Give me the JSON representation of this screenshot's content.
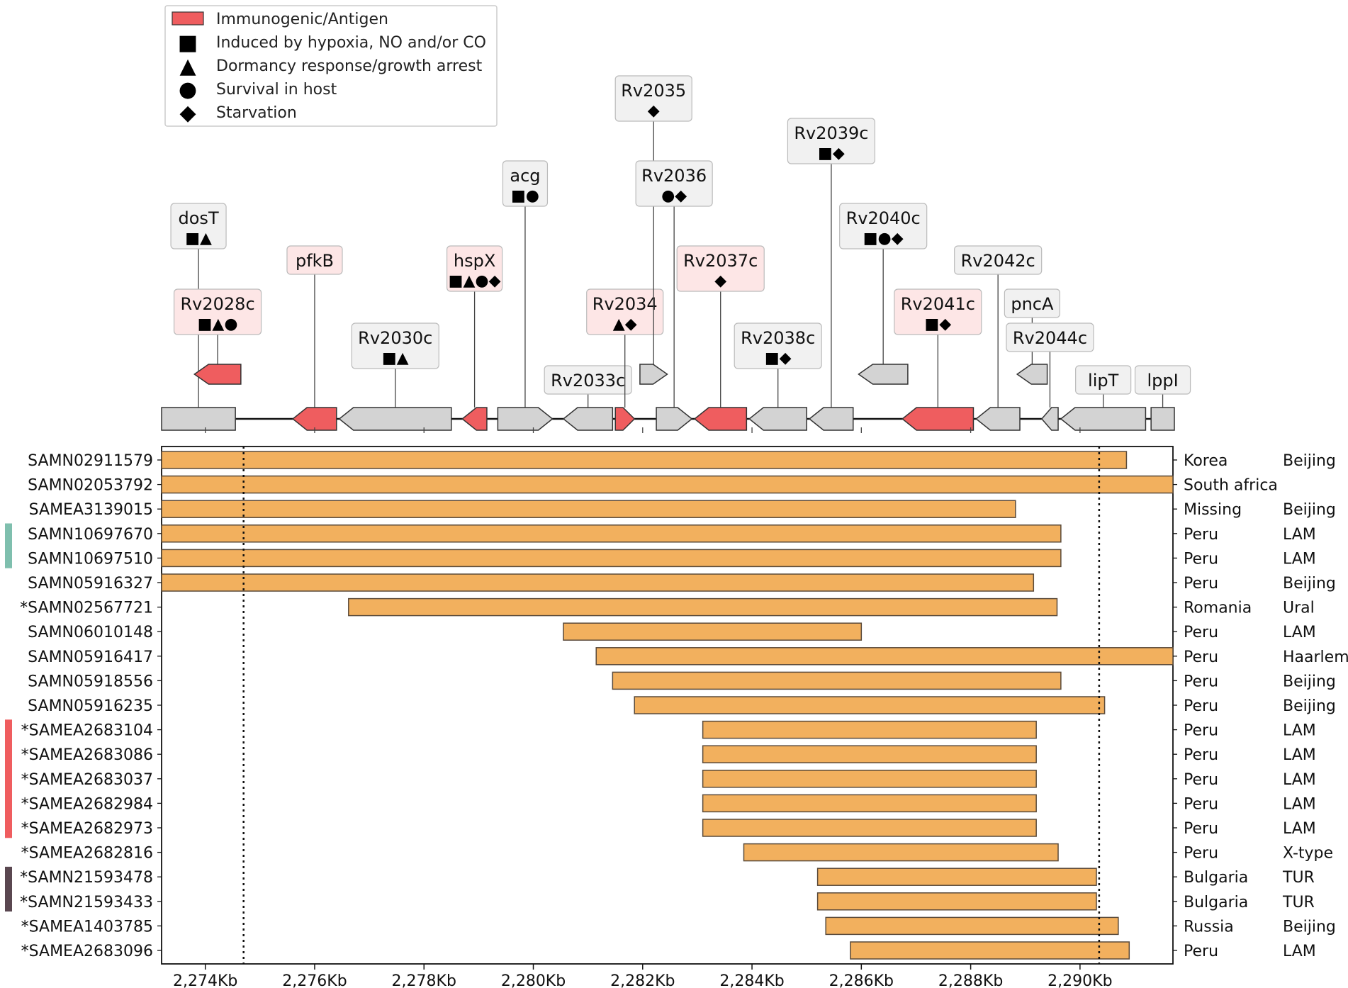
{
  "chart_data": {
    "type": "bar",
    "subtype": "genomic-deletion-map",
    "xlabel": "",
    "xlim": [
      2273200,
      2291700
    ],
    "x_ticks": [
      2274000,
      2276000,
      2278000,
      2280000,
      2282000,
      2284000,
      2286000,
      2288000,
      2290000
    ],
    "x_tick_labels": [
      "2,274Kb",
      "2,276Kb",
      "2,278Kb",
      "2,280Kb",
      "2,282Kb",
      "2,284Kb",
      "2,286Kb",
      "2,288Kb",
      "2,290Kb"
    ],
    "reference_lines": [
      2274700,
      2290350
    ],
    "bar_color": "#f2b05e",
    "antigen_color": "#ef5d5f",
    "gene_color": "#d3d3d3",
    "legend": [
      {
        "symbol": "antigen-box",
        "label": "Immunogenic/Antigen"
      },
      {
        "symbol": "■",
        "label": "Induced by hypoxia, NO and/or CO"
      },
      {
        "symbol": "▲",
        "label": "Dormancy response/growth arrest"
      },
      {
        "symbol": "●",
        "label": "Survival in host"
      },
      {
        "symbol": "◆",
        "label": "Starvation"
      }
    ],
    "genes": [
      {
        "name": "dosT",
        "start": 2273200,
        "end": 2274550,
        "strand": "+",
        "antigen": false,
        "row": "main",
        "symbols": "■▲",
        "label_level": 5
      },
      {
        "name": "Rv2028c",
        "start": 2273800,
        "end": 2274650,
        "strand": "-",
        "antigen": true,
        "row": "upper",
        "symbols": "■▲●",
        "label_level": 3
      },
      {
        "name": "pfkB",
        "start": 2275600,
        "end": 2276400,
        "strand": "-",
        "antigen": true,
        "row": "main",
        "symbols": "",
        "label_level": 4
      },
      {
        "name": "Rv2030c",
        "start": 2276450,
        "end": 2278500,
        "strand": "-",
        "antigen": false,
        "row": "main",
        "symbols": "■▲",
        "label_level": 2
      },
      {
        "name": "hspX",
        "start": 2278700,
        "end": 2279150,
        "strand": "-",
        "antigen": true,
        "row": "main",
        "symbols": "■▲●◆",
        "label_level": 4
      },
      {
        "name": "acg",
        "start": 2279350,
        "end": 2280350,
        "strand": "+",
        "antigen": false,
        "row": "main",
        "symbols": "■●",
        "label_level": 6
      },
      {
        "name": "Rv2033c",
        "start": 2280550,
        "end": 2281450,
        "strand": "-",
        "antigen": false,
        "row": "main",
        "symbols": "",
        "label_level": 1
      },
      {
        "name": "Rv2034",
        "start": 2281500,
        "end": 2281850,
        "strand": "+",
        "antigen": true,
        "row": "main",
        "symbols": "▲◆",
        "label_level": 3
      },
      {
        "name": "Rv2035",
        "start": 2281950,
        "end": 2282450,
        "strand": "+",
        "antigen": false,
        "row": "upper",
        "symbols": "◆",
        "label_level": 8
      },
      {
        "name": "Rv2036",
        "start": 2282250,
        "end": 2282900,
        "strand": "+",
        "antigen": false,
        "row": "main",
        "symbols": "●◆",
        "label_level": 6
      },
      {
        "name": "Rv2037c",
        "start": 2282950,
        "end": 2283900,
        "strand": "-",
        "antigen": true,
        "row": "main",
        "symbols": "◆",
        "label_level": 4
      },
      {
        "name": "Rv2038c",
        "start": 2283950,
        "end": 2285000,
        "strand": "-",
        "antigen": false,
        "row": "main",
        "symbols": "■◆",
        "label_level": 2
      },
      {
        "name": "Rv2039c",
        "start": 2285050,
        "end": 2285850,
        "strand": "-",
        "antigen": false,
        "row": "main",
        "symbols": "■◆",
        "label_level": 7
      },
      {
        "name": "Rv2040c",
        "start": 2285950,
        "end": 2286850,
        "strand": "-",
        "antigen": false,
        "row": "upper",
        "symbols": "■●◆",
        "label_level": 5
      },
      {
        "name": "Rv2041c",
        "start": 2286750,
        "end": 2288050,
        "strand": "-",
        "antigen": true,
        "row": "main",
        "symbols": "■◆",
        "label_level": 3
      },
      {
        "name": "Rv2042c",
        "start": 2288100,
        "end": 2288900,
        "strand": "-",
        "antigen": false,
        "row": "main",
        "symbols": "",
        "label_level": 4
      },
      {
        "name": "pncA",
        "start": 2288850,
        "end": 2289400,
        "strand": "-",
        "antigen": false,
        "row": "upper",
        "symbols": "",
        "label_level": 3
      },
      {
        "name": "Rv2044c",
        "start": 2289300,
        "end": 2289600,
        "strand": "-",
        "antigen": false,
        "row": "main",
        "symbols": "",
        "label_level": 2
      },
      {
        "name": "lipT",
        "start": 2289650,
        "end": 2291200,
        "strand": "-",
        "antigen": false,
        "row": "main",
        "symbols": "",
        "label_level": 1
      },
      {
        "name": "lppI",
        "start": 2291300,
        "end": 2291900,
        "strand": "+",
        "antigen": false,
        "row": "main",
        "symbols": "",
        "label_level": 1
      }
    ],
    "isolates": [
      {
        "id": "SAMN02911579",
        "start": 2273200,
        "end": 2290850,
        "country": "Korea",
        "lineage": "Beijing",
        "cluster": ""
      },
      {
        "id": "SAMN02053792",
        "start": 2273200,
        "end": 2291700,
        "country": "South africa",
        "lineage": "",
        "cluster": ""
      },
      {
        "id": "SAMEA3139015",
        "start": 2273200,
        "end": 2288820,
        "country": "Missing",
        "lineage": "Beijing",
        "cluster": ""
      },
      {
        "id": "SAMN10697670",
        "start": 2273200,
        "end": 2289650,
        "country": "Peru",
        "lineage": "LAM",
        "cluster": "#7fbfae"
      },
      {
        "id": "SAMN10697510",
        "start": 2273200,
        "end": 2289650,
        "country": "Peru",
        "lineage": "LAM",
        "cluster": "#7fbfae"
      },
      {
        "id": "SAMN05916327",
        "start": 2273200,
        "end": 2289150,
        "country": "Peru",
        "lineage": "Beijing",
        "cluster": ""
      },
      {
        "id": "*SAMN02567721",
        "start": 2276620,
        "end": 2289580,
        "country": "Romania",
        "lineage": "Ural",
        "cluster": ""
      },
      {
        "id": "SAMN06010148",
        "start": 2280550,
        "end": 2286000,
        "country": "Peru",
        "lineage": "LAM",
        "cluster": ""
      },
      {
        "id": "SAMN05916417",
        "start": 2281150,
        "end": 2291700,
        "country": "Peru",
        "lineage": "Haarlem",
        "cluster": ""
      },
      {
        "id": "SAMN05918556",
        "start": 2281450,
        "end": 2289650,
        "country": "Peru",
        "lineage": "Beijing",
        "cluster": ""
      },
      {
        "id": "SAMN05916235",
        "start": 2281850,
        "end": 2290450,
        "country": "Peru",
        "lineage": "Beijing",
        "cluster": ""
      },
      {
        "id": "*SAMEA2683104",
        "start": 2283100,
        "end": 2289200,
        "country": "Peru",
        "lineage": "LAM",
        "cluster": "#ef5d5f"
      },
      {
        "id": "*SAMEA2683086",
        "start": 2283100,
        "end": 2289200,
        "country": "Peru",
        "lineage": "LAM",
        "cluster": "#ef5d5f"
      },
      {
        "id": "*SAMEA2683037",
        "start": 2283100,
        "end": 2289200,
        "country": "Peru",
        "lineage": "LAM",
        "cluster": "#ef5d5f"
      },
      {
        "id": "*SAMEA2682984",
        "start": 2283100,
        "end": 2289200,
        "country": "Peru",
        "lineage": "LAM",
        "cluster": "#ef5d5f"
      },
      {
        "id": "*SAMEA2682973",
        "start": 2283100,
        "end": 2289200,
        "country": "Peru",
        "lineage": "LAM",
        "cluster": "#ef5d5f"
      },
      {
        "id": "*SAMEA2682816",
        "start": 2283850,
        "end": 2289600,
        "country": "Peru",
        "lineage": "X-type",
        "cluster": ""
      },
      {
        "id": "*SAMN21593478",
        "start": 2285200,
        "end": 2290300,
        "country": "Bulgaria",
        "lineage": "TUR",
        "cluster": "#5a4750"
      },
      {
        "id": "*SAMN21593433",
        "start": 2285200,
        "end": 2290300,
        "country": "Bulgaria",
        "lineage": "TUR",
        "cluster": "#5a4750"
      },
      {
        "id": "*SAMEA1403785",
        "start": 2285350,
        "end": 2290700,
        "country": "Russia",
        "lineage": "Beijing",
        "cluster": ""
      },
      {
        "id": "*SAMEA2683096",
        "start": 2285800,
        "end": 2290900,
        "country": "Peru",
        "lineage": "LAM",
        "cluster": ""
      }
    ]
  }
}
